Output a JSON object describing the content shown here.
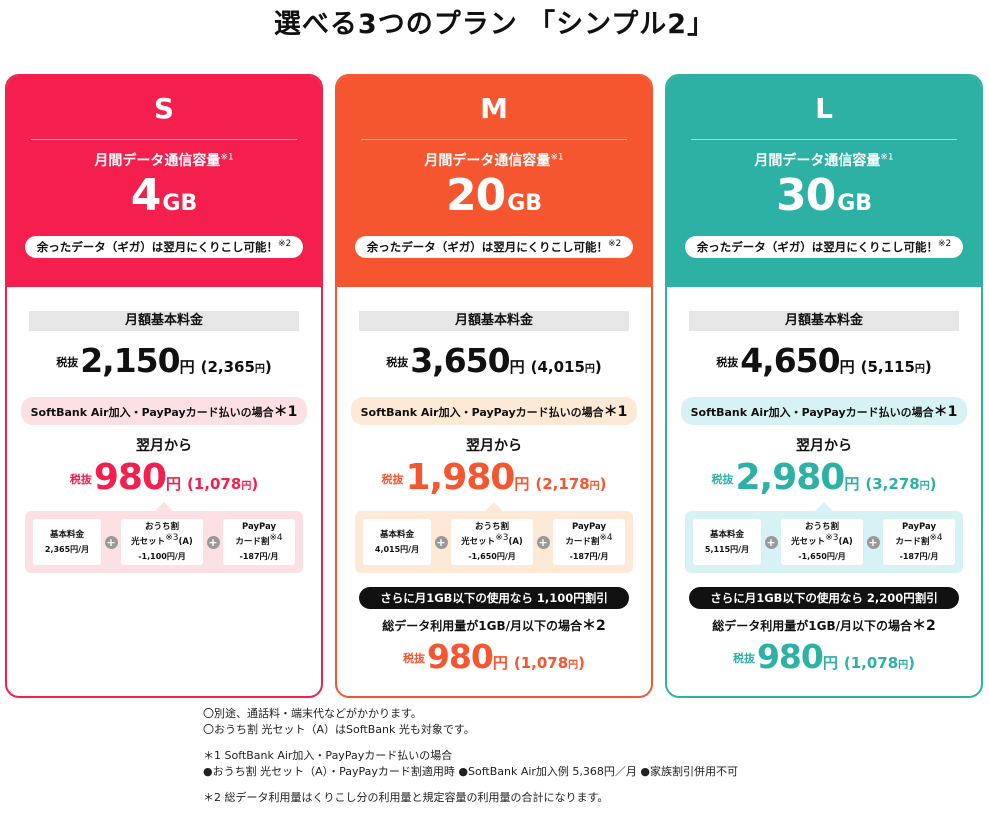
{
  "title": "選べる3つのプラン 「シンプル2」",
  "plans": [
    {
      "letter": "S",
      "cap_label": "月間データ通信容量",
      "cap_note": "※1",
      "cap_value": "4",
      "cap_unit": "GB",
      "carry_over": "余ったデータ（ギガ）は翌月にくりこし可能！",
      "carry_note": "※2",
      "fee_label": "月額基本料金",
      "tax_label": "税抜",
      "base_price": "2,150",
      "yen": "円",
      "base_price_incl": "(2,365",
      "paren_close": ")",
      "sb_condition": "SoftBank Air加入・PayPayカード払いの場合",
      "sb_note": "＊1",
      "next_month": "翌月から",
      "disc_price": "980",
      "disc_price_incl": "(1,078",
      "breakdown": {
        "base_title": "基本料金",
        "base_value": "2,365円/月",
        "ouchi_title1": "おうち割",
        "ouchi_title2": "光セット",
        "ouchi_note": "※3",
        "ouchi_title3": "(A)",
        "ouchi_value": "-1,100円/月",
        "paypay_title1": "PayPay",
        "paypay_title2": "カード割",
        "paypay_note": "※4",
        "paypay_value": "-187円/月",
        "plus": "+"
      }
    },
    {
      "letter": "M",
      "cap_label": "月間データ通信容量",
      "cap_note": "※1",
      "cap_value": "20",
      "cap_unit": "GB",
      "carry_over": "余ったデータ（ギガ）は翌月にくりこし可能！",
      "carry_note": "※2",
      "fee_label": "月額基本料金",
      "tax_label": "税抜",
      "base_price": "3,650",
      "yen": "円",
      "base_price_incl": "(4,015",
      "paren_close": ")",
      "sb_condition": "SoftBank Air加入・PayPayカード払いの場合",
      "sb_note": "＊1",
      "next_month": "翌月から",
      "disc_price": "1,980",
      "disc_price_incl": "(2,178",
      "breakdown": {
        "base_title": "基本料金",
        "base_value": "4,015円/月",
        "ouchi_title1": "おうち割",
        "ouchi_title2": "光セット",
        "ouchi_note": "※3",
        "ouchi_title3": "(A)",
        "ouchi_value": "-1,650円/月",
        "paypay_title1": "PayPay",
        "paypay_title2": "カード割",
        "paypay_note": "※4",
        "paypay_value": "-187円/月",
        "plus": "+"
      },
      "gb_pill": "さらに月1GB以下の使用なら 1,100円割引",
      "gb_condition": "総データ利用量が1GB/月以下の場合",
      "gb_note": "＊2",
      "gb_price": "980",
      "gb_price_incl": "(1,078"
    },
    {
      "letter": "L",
      "cap_label": "月間データ通信容量",
      "cap_note": "※1",
      "cap_value": "30",
      "cap_unit": "GB",
      "carry_over": "余ったデータ（ギガ）は翌月にくりこし可能！",
      "carry_note": "※2",
      "fee_label": "月額基本料金",
      "tax_label": "税抜",
      "base_price": "4,650",
      "yen": "円",
      "base_price_incl": "(5,115",
      "paren_close": ")",
      "sb_condition": "SoftBank Air加入・PayPayカード払いの場合",
      "sb_note": "＊1",
      "next_month": "翌月から",
      "disc_price": "2,980",
      "disc_price_incl": "(3,278",
      "breakdown": {
        "base_title": "基本料金",
        "base_value": "5,115円/月",
        "ouchi_title1": "おうち割",
        "ouchi_title2": "光セット",
        "ouchi_note": "※3",
        "ouchi_title3": "(A)",
        "ouchi_value": "-1,650円/月",
        "paypay_title1": "PayPay",
        "paypay_title2": "カード割",
        "paypay_note": "※4",
        "paypay_value": "-187円/月",
        "plus": "+"
      },
      "gb_pill": "さらに月1GB以下の使用なら 2,200円割引",
      "gb_condition": "総データ利用量が1GB/月以下の場合",
      "gb_note": "＊2",
      "gb_price": "980",
      "gb_price_incl": "(1,078"
    }
  ],
  "notes": {
    "line1": "〇別途、通話料・端末代などがかかります。",
    "line2": "〇おうち割 光セット（A）はSoftBank 光も対象です。",
    "line3": "＊1 SoftBank Air加入・PayPayカード払いの場合",
    "line4": "●おうち割 光セット（A）・PayPayカード割適用時 ●SoftBank Air加入例 5,368円／月 ●家族割引併用不可",
    "line5": "＊2 総データ利用量はくりこし分の利用量と規定容量の利用量の合計になります。"
  },
  "colors": {
    "s": "#f41f4c",
    "m": "#f5552f",
    "l": "#2db1a4"
  }
}
